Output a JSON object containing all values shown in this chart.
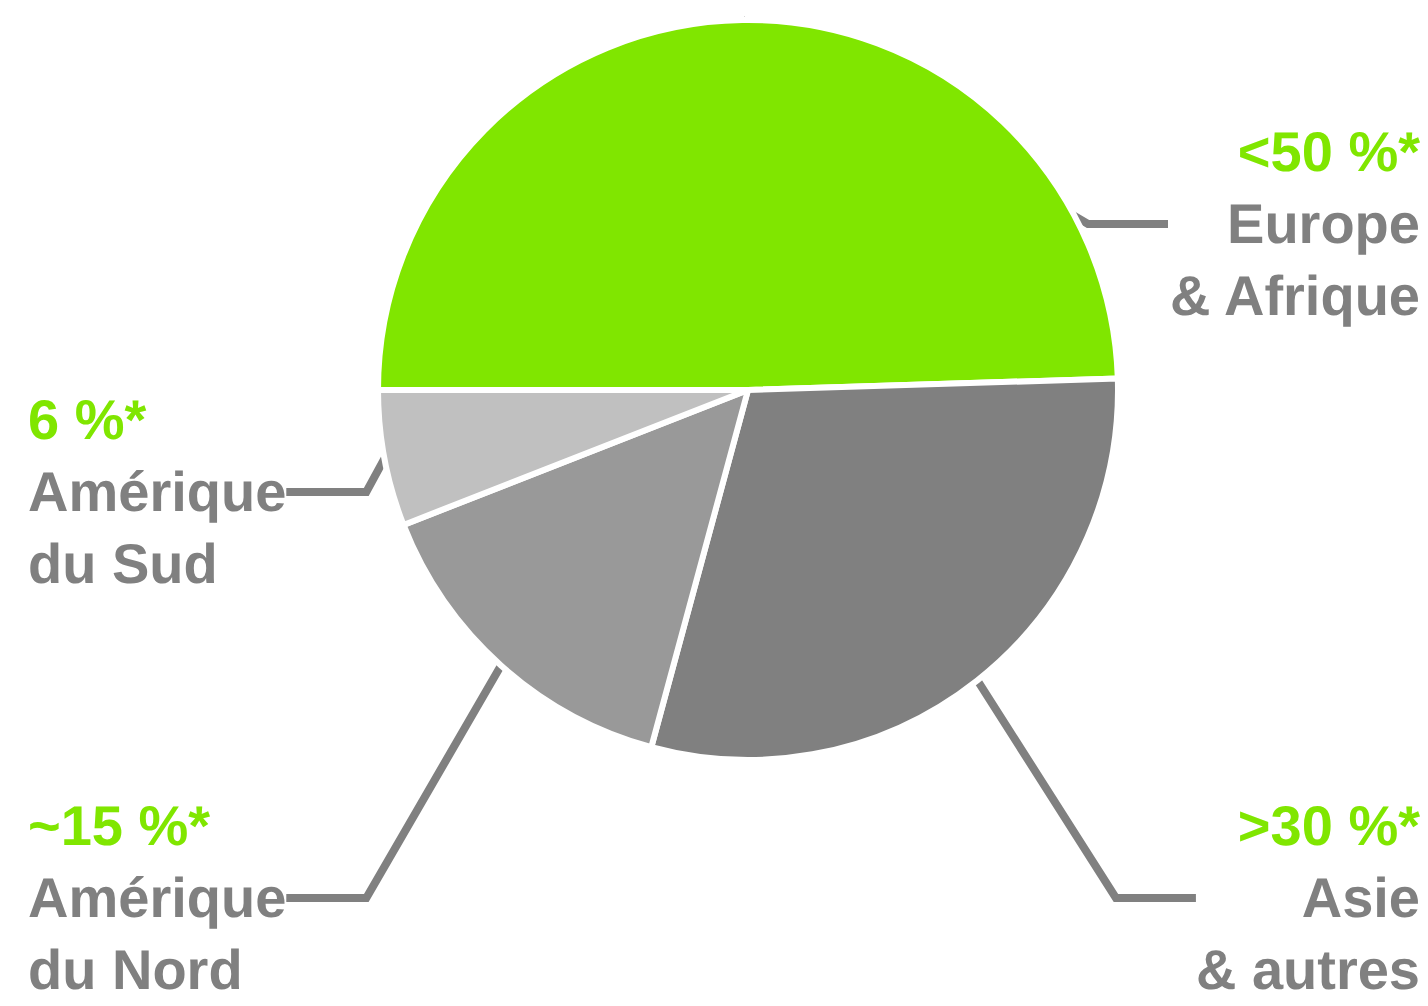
{
  "chart_data": {
    "type": "pie",
    "categories": [
      "Europe & Afrique",
      "Asie & autres",
      "Amérique du Nord",
      "Amérique du Sud"
    ],
    "values": [
      50,
      30,
      15,
      6
    ],
    "colors": [
      "#80e600",
      "#808080",
      "#999999",
      "#c0c0c0"
    ],
    "value_labels": [
      "<50 %*",
      ">30 %*",
      "~15 %*",
      "6 %*"
    ]
  }
}
